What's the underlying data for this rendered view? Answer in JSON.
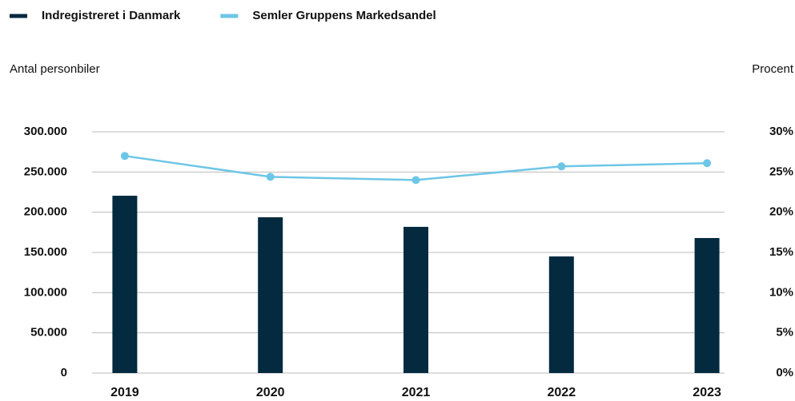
{
  "chart_data": {
    "type": "bar-line",
    "categories": [
      "2019",
      "2020",
      "2021",
      "2022",
      "2023"
    ],
    "series": [
      {
        "name": "Indregistreret i Danmark",
        "color": "#032a3e",
        "type": "bar",
        "values": [
          220500,
          193700,
          181800,
          145000,
          167900
        ]
      },
      {
        "name": "Semler Gruppens Markedsandel",
        "color": "#6ec6e6",
        "type": "line",
        "axis": "y2",
        "values": [
          27.0,
          24.4,
          24.0,
          25.7,
          26.1
        ]
      }
    ],
    "ylabel": "Antal personbiler",
    "y2label": "Procent",
    "ylim": [
      0,
      300000
    ],
    "yticks": [
      0,
      {
        "value": 50000,
        "label": "50.000"
      },
      {
        "value": 100000,
        "label": "100.000"
      },
      {
        "value": 150000,
        "label": "150.000"
      },
      {
        "value": 200000,
        "label": "200.000"
      },
      {
        "value": 250000,
        "label": "250.000"
      },
      {
        "value": 300000,
        "label": "300.000"
      }
    ],
    "y2lim": [
      0,
      30
    ],
    "y2ticks": [
      {
        "value": 0,
        "label": "0%"
      },
      {
        "value": 5,
        "label": "5%"
      },
      {
        "value": 10,
        "label": "10%"
      },
      {
        "value": 15,
        "label": "15%"
      },
      {
        "value": 20,
        "label": "20%"
      },
      {
        "value": 25,
        "label": "25%"
      },
      {
        "value": 30,
        "label": "30%"
      }
    ],
    "grid": true,
    "legend": "top-left"
  }
}
